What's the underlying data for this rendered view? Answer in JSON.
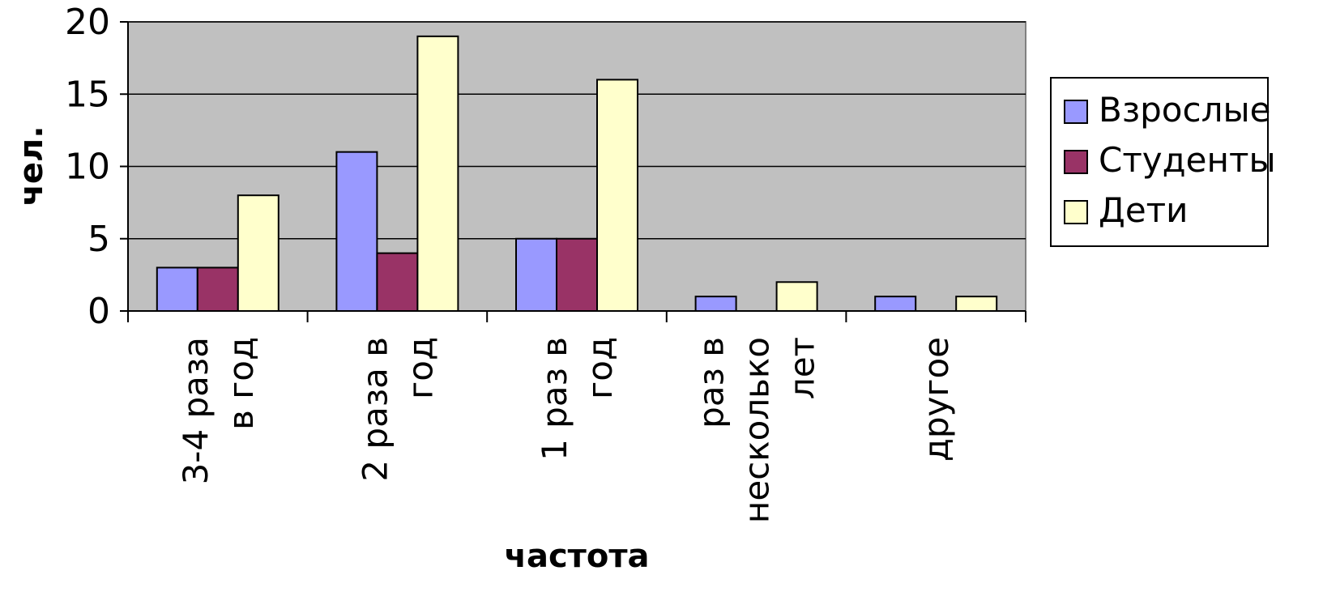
{
  "chart_data": {
    "type": "bar",
    "categories": [
      [
        "3-4 раза",
        "в год"
      ],
      [
        "2 раза в",
        "год"
      ],
      [
        "1 раз в",
        "год"
      ],
      [
        "раз в",
        "несколько",
        "лет"
      ],
      [
        "другое"
      ]
    ],
    "series": [
      {
        "name": "Взрослые",
        "values": [
          3,
          11,
          5,
          1,
          1
        ],
        "color": "#9999ff"
      },
      {
        "name": "Студенты",
        "values": [
          3,
          4,
          5,
          0,
          0
        ],
        "color": "#993366"
      },
      {
        "name": "Дети",
        "values": [
          8,
          19,
          16,
          2,
          1
        ],
        "color": "#ffffcc"
      }
    ],
    "xlabel": "частота",
    "ylabel": "чел.",
    "ylim": [
      0,
      20
    ],
    "yticks": [
      0,
      5,
      10,
      15,
      20
    ],
    "plot_background": "#c0c0c0",
    "grid": true,
    "legend_position": "right"
  }
}
